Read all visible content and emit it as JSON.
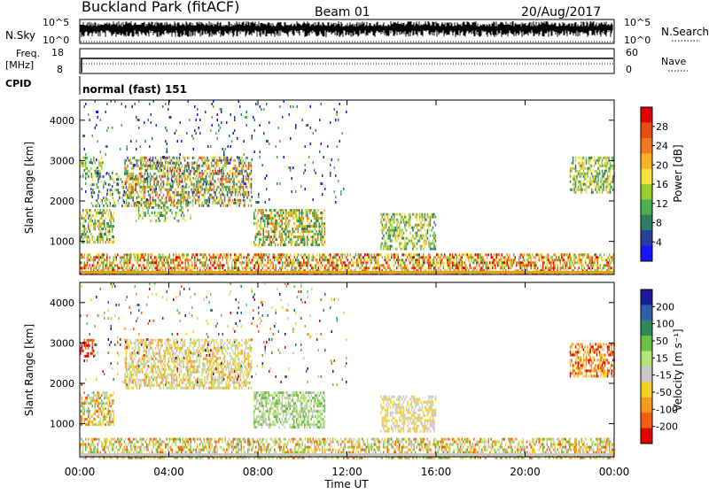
{
  "header": {
    "title": "Buckland Park (fitACF)",
    "beam": "Beam 01",
    "date": "20/Aug/2017"
  },
  "noise_panel": {
    "left_label": "N.Sky",
    "right_label": "N.Search",
    "top_tick": "10^5",
    "bottom_tick": "10^0"
  },
  "freq_panel": {
    "left_label_1": "Freq.",
    "left_label_2": "[MHz]",
    "ticks_left": [
      "18",
      "8"
    ],
    "ticks_right": [
      "60",
      "0"
    ],
    "right_label": "Nave"
  },
  "cpid_panel": {
    "label": "CPID",
    "program": "normal (fast) 151"
  },
  "chart_data": [
    {
      "type": "heatmap",
      "name": "power",
      "ylabel": "Slant Range [km]",
      "ylim": [
        180,
        4500
      ],
      "xlim_hours": [
        0,
        24
      ],
      "y_ticks": [
        "1000",
        "2000",
        "3000",
        "4000"
      ],
      "colorbar": {
        "label": "Power [dB]",
        "ticks": [
          "4",
          "8",
          "12",
          "16",
          "20",
          "24",
          "28"
        ],
        "colors": [
          "#1515ff",
          "#2a3f9a",
          "#2e7d60",
          "#4caf50",
          "#9acd32",
          "#f5e23a",
          "#f5b22a",
          "#f07820",
          "#e84d10",
          "#e00000"
        ]
      },
      "scatter_regions": [
        {
          "t0": 0.0,
          "t1": 1.5,
          "r0": 1000,
          "r1": 1800,
          "density": 0.55,
          "levels": [
            2,
            6
          ]
        },
        {
          "t0": 0.0,
          "t1": 1.0,
          "r0": 2600,
          "r1": 3100,
          "density": 0.45,
          "levels": [
            2,
            6
          ]
        },
        {
          "t0": 0.5,
          "t1": 2.5,
          "r0": 1900,
          "r1": 2700,
          "density": 0.3,
          "levels": [
            1,
            5
          ]
        },
        {
          "t0": 2.0,
          "t1": 7.7,
          "r0": 1900,
          "r1": 3100,
          "density": 0.55,
          "levels": [
            1,
            8
          ]
        },
        {
          "t0": 2.5,
          "t1": 5.0,
          "r0": 1500,
          "r1": 2000,
          "density": 0.3,
          "levels": [
            2,
            5
          ]
        },
        {
          "t0": 7.8,
          "t1": 11.0,
          "r0": 900,
          "r1": 1800,
          "density": 0.6,
          "levels": [
            2,
            7
          ]
        },
        {
          "t0": 13.5,
          "t1": 16.0,
          "r0": 800,
          "r1": 1700,
          "density": 0.55,
          "levels": [
            2,
            6
          ]
        },
        {
          "t0": 22.0,
          "t1": 24.0,
          "r0": 2200,
          "r1": 3100,
          "density": 0.55,
          "levels": [
            2,
            6
          ]
        },
        {
          "t0": 0.0,
          "t1": 12.0,
          "r0": 2000,
          "r1": 4500,
          "density": 0.04,
          "levels": [
            0,
            3
          ]
        },
        {
          "t0": 0.0,
          "t1": 24.0,
          "r0": 180,
          "r1": 700,
          "density": 0.6,
          "levels": [
            3,
            9
          ]
        }
      ]
    },
    {
      "type": "heatmap",
      "name": "velocity",
      "ylabel": "Slant Range [km]",
      "ylim": [
        180,
        4500
      ],
      "xlim_hours": [
        0,
        24
      ],
      "y_ticks": [
        "1000",
        "2000",
        "3000",
        "4000"
      ],
      "colorbar": {
        "label": "Velocity [m s⁻¹]",
        "ticks": [
          "200",
          "100",
          "50",
          "15",
          "-15",
          "-50",
          "-100",
          "-200"
        ],
        "colors": [
          "#1a1a9a",
          "#2e5fa8",
          "#2e8b57",
          "#6cc04a",
          "#b8e27a",
          "#c8c8c8",
          "#f5d020",
          "#f59a20",
          "#f06010",
          "#e00000"
        ]
      },
      "scatter_regions": [
        {
          "t0": 0.0,
          "t1": 1.5,
          "r0": 1000,
          "r1": 1800,
          "density": 0.55,
          "levels": [
            3,
            8
          ]
        },
        {
          "t0": 0.0,
          "t1": 0.6,
          "r0": 2700,
          "r1": 3100,
          "density": 0.5,
          "levels": [
            8,
            9
          ]
        },
        {
          "t0": 2.0,
          "t1": 7.7,
          "r0": 1900,
          "r1": 3100,
          "density": 0.55,
          "levels": [
            4,
            7
          ]
        },
        {
          "t0": 7.8,
          "t1": 11.0,
          "r0": 900,
          "r1": 1800,
          "density": 0.6,
          "levels": [
            3,
            5
          ]
        },
        {
          "t0": 13.5,
          "t1": 16.0,
          "r0": 800,
          "r1": 1700,
          "density": 0.55,
          "levels": [
            5,
            6
          ]
        },
        {
          "t0": 22.0,
          "t1": 24.0,
          "r0": 2200,
          "r1": 3000,
          "density": 0.55,
          "levels": [
            6,
            9
          ]
        },
        {
          "t0": 0.0,
          "t1": 12.0,
          "r0": 2000,
          "r1": 4500,
          "density": 0.04,
          "levels": [
            0,
            9
          ]
        },
        {
          "t0": 0.0,
          "t1": 24.0,
          "r0": 180,
          "r1": 650,
          "density": 0.55,
          "levels": [
            3,
            8
          ]
        }
      ]
    }
  ],
  "x_axis": {
    "ticks": [
      "00:00",
      "04:00",
      "08:00",
      "12:00",
      "16:00",
      "20:00",
      "00:00"
    ],
    "label": "Time UT"
  }
}
